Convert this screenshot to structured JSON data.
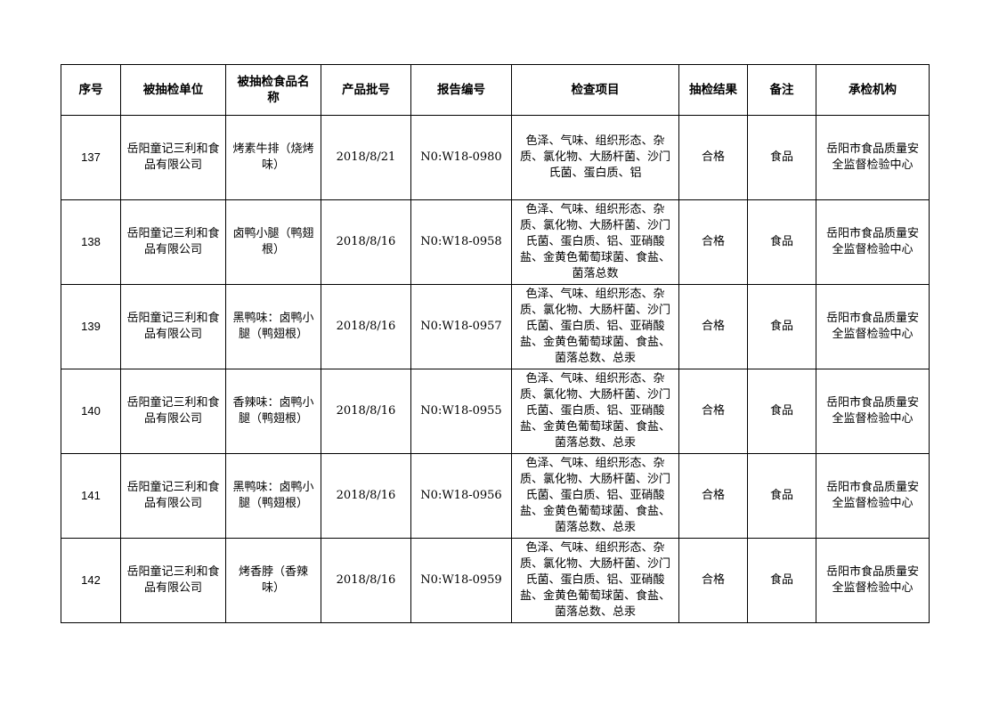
{
  "headers": [
    "序号",
    "被抽检单位",
    "被抽检食品名称",
    "产品批号",
    "报告编号",
    "检查项目",
    "抽检结果",
    "备注",
    "承检机构"
  ],
  "rows": [
    {
      "seq": "137",
      "unit": "岳阳童记三利和食品有限公司",
      "food": "烤素牛排（烧烤味）",
      "batch": "2018/8/21",
      "report": "N0:W18-0980",
      "items": "色泽、气味、组织形态、杂质、氯化物、大肠杆菌、沙门氏菌、蛋白质、铝",
      "result": "合格",
      "note": "食品",
      "agency": "岳阳市食品质量安全监督检验中心"
    },
    {
      "seq": "138",
      "unit": "岳阳童记三利和食品有限公司",
      "food": "卤鸭小腿（鸭翅根）",
      "batch": "2018/8/16",
      "report": "N0:W18-0958",
      "items": "色泽、气味、组织形态、杂质、氯化物、大肠杆菌、沙门氏菌、蛋白质、铝、亚硝酸盐、金黄色葡萄球菌、食盐、菌落总数",
      "result": "合格",
      "note": "食品",
      "agency": "岳阳市食品质量安全监督检验中心"
    },
    {
      "seq": "139",
      "unit": "岳阳童记三利和食品有限公司",
      "food": "黑鸭味：卤鸭小腿（鸭翅根）",
      "batch": "2018/8/16",
      "report": "N0:W18-0957",
      "items": "色泽、气味、组织形态、杂质、氯化物、大肠杆菌、沙门氏菌、蛋白质、铝、亚硝酸盐、金黄色葡萄球菌、食盐、菌落总数、总汞",
      "result": "合格",
      "note": "食品",
      "agency": "岳阳市食品质量安全监督检验中心"
    },
    {
      "seq": "140",
      "unit": "岳阳童记三利和食品有限公司",
      "food": "香辣味：卤鸭小腿（鸭翅根）",
      "batch": "2018/8/16",
      "report": "N0:W18-0955",
      "items": "色泽、气味、组织形态、杂质、氯化物、大肠杆菌、沙门氏菌、蛋白质、铝、亚硝酸盐、金黄色葡萄球菌、食盐、菌落总数、总汞",
      "result": "合格",
      "note": "食品",
      "agency": "岳阳市食品质量安全监督检验中心"
    },
    {
      "seq": "141",
      "unit": "岳阳童记三利和食品有限公司",
      "food": "黑鸭味：卤鸭小腿（鸭翅根）",
      "batch": "2018/8/16",
      "report": "N0:W18-0956",
      "items": "色泽、气味、组织形态、杂质、氯化物、大肠杆菌、沙门氏菌、蛋白质、铝、亚硝酸盐、金黄色葡萄球菌、食盐、菌落总数、总汞",
      "result": "合格",
      "note": "食品",
      "agency": "岳阳市食品质量安全监督检验中心"
    },
    {
      "seq": "142",
      "unit": "岳阳童记三利和食品有限公司",
      "food": "烤香脖（香辣味）",
      "batch": "2018/8/16",
      "report": "N0:W18-0959",
      "items": "色泽、气味、组织形态、杂质、氯化物、大肠杆菌、沙门氏菌、蛋白质、铝、亚硝酸盐、金黄色葡萄球菌、食盐、菌落总数、总汞",
      "result": "合格",
      "note": "食品",
      "agency": "岳阳市食品质量安全监督检验中心"
    }
  ]
}
